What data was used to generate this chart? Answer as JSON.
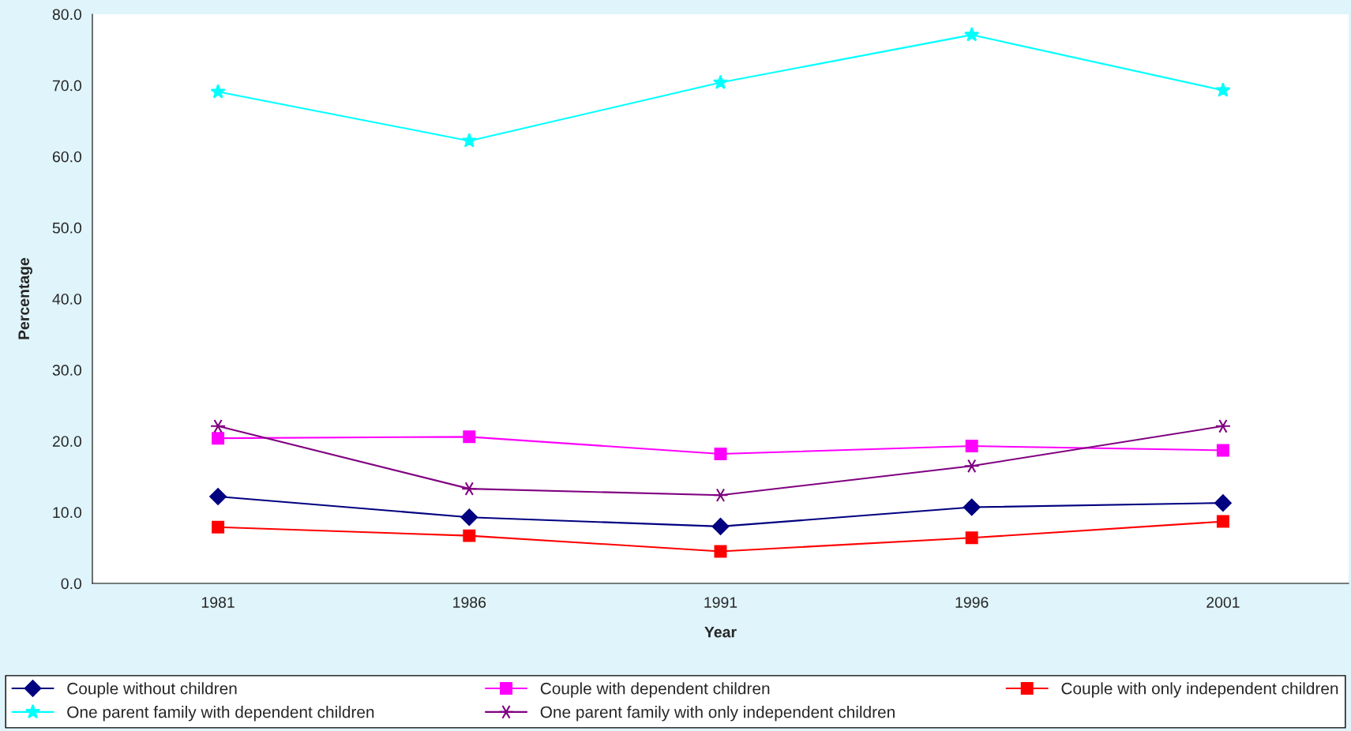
{
  "chart_data": {
    "type": "line",
    "xlabel": "Year",
    "ylabel": "Percentage",
    "categories": [
      "1981",
      "1986",
      "1991",
      "1996",
      "2001"
    ],
    "ylim": [
      0,
      80
    ],
    "yticks": [
      {
        "value": 0,
        "label": "0.0"
      },
      {
        "value": 10,
        "label": "10.0"
      },
      {
        "value": 20,
        "label": "20.0"
      },
      {
        "value": 30,
        "label": "30.0"
      },
      {
        "value": 40,
        "label": "40.0"
      },
      {
        "value": 50,
        "label": "50.0"
      },
      {
        "value": 60,
        "label": "60.0"
      },
      {
        "value": 70,
        "label": "70.0"
      },
      {
        "value": 80,
        "label": "80.0"
      }
    ],
    "grid": false,
    "legend": "bottom",
    "line_style": "solid",
    "series": [
      {
        "name": "Couple without children",
        "color": "#000080",
        "marker": "diamond",
        "values": [
          12.2,
          9.3,
          8.0,
          10.7,
          11.3
        ]
      },
      {
        "name": "Couple with dependent children",
        "color": "#ff00ff",
        "marker": "square",
        "values": [
          20.4,
          20.6,
          18.2,
          19.3,
          18.7
        ]
      },
      {
        "name": "Couple with only independent children",
        "color": "#ff0000",
        "marker": "square",
        "values": [
          7.9,
          6.7,
          4.5,
          6.4,
          8.7
        ]
      },
      {
        "name": "One parent family with dependent children",
        "color": "#00ffff",
        "marker": "star",
        "values": [
          69.1,
          62.2,
          70.4,
          77.1,
          69.3
        ]
      },
      {
        "name": "One parent family with only independent children",
        "color": "#800080",
        "marker": "cross",
        "values": [
          22.1,
          13.3,
          12.4,
          16.5,
          22.1
        ]
      }
    ]
  }
}
